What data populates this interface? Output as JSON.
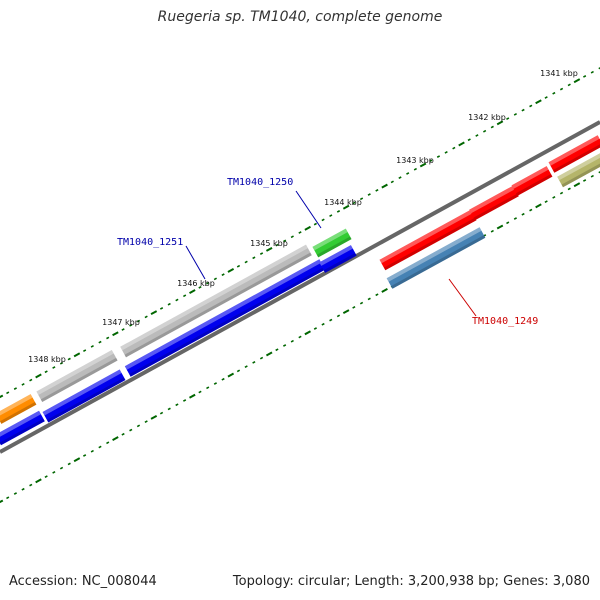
{
  "title": "Ruegeria sp. TM1040, complete genome",
  "footer": {
    "accession": "Accession: NC_008044",
    "summary": "Topology: circular; Length: 3,200,938 bp; Genes: 3,080"
  },
  "tick_labels": [
    "1341 kbp",
    "1342 kbp",
    "1343 kbp",
    "1344 kbp",
    "1345 kbp",
    "1346 kbp",
    "1347 kbp",
    "1348 kbp"
  ],
  "gene_labels": [
    {
      "text": "TM1040_1250",
      "color": "#0000aa"
    },
    {
      "text": "TM1040_1251",
      "color": "#0000aa"
    },
    {
      "text": "TM1040_1249",
      "color": "#cc0000"
    }
  ],
  "colors": {
    "backbone": "#666666",
    "tick": "#006600",
    "gene_blue": "#0000ee",
    "gene_red": "#ff0000",
    "gene_gray": "#bbbbbb",
    "gene_green": "#33cc33",
    "gene_orange": "#ff8c00",
    "gene_olive": "#b5b56a",
    "gene_steelblue": "#4682b4"
  }
}
